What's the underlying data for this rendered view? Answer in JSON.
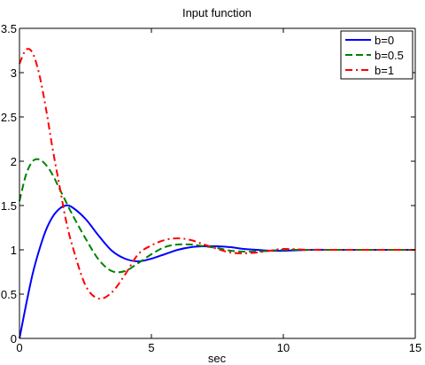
{
  "chart_data": {
    "type": "line",
    "title": "Input function",
    "xlabel": "sec",
    "ylabel": "",
    "xlim": [
      0,
      15
    ],
    "ylim": [
      0,
      3.5
    ],
    "xticks": [
      "0",
      "5",
      "10",
      "15"
    ],
    "yticks": [
      "0",
      "0.5",
      "1",
      "1.5",
      "2",
      "2.5",
      "3",
      "3.5"
    ],
    "grid": false,
    "legend_position": "top-right",
    "series": [
      {
        "name": "b=0",
        "color": "#0000ff",
        "style": "solid",
        "x": [
          0,
          0.25,
          0.5,
          0.75,
          1.0,
          1.25,
          1.5,
          1.75,
          2.0,
          2.5,
          3.0,
          3.5,
          4.0,
          4.5,
          5.0,
          5.5,
          6.0,
          6.5,
          7.0,
          7.5,
          8.0,
          8.5,
          9.0,
          9.5,
          10.0,
          11.0,
          12.0,
          13.0,
          14.0,
          15.0
        ],
        "values": [
          0,
          0.38,
          0.73,
          1.0,
          1.22,
          1.37,
          1.46,
          1.5,
          1.48,
          1.35,
          1.16,
          0.99,
          0.9,
          0.87,
          0.9,
          0.95,
          1.0,
          1.03,
          1.04,
          1.04,
          1.03,
          1.01,
          1.0,
          0.99,
          0.99,
          1.0,
          1.0,
          1.0,
          1.0,
          1.0
        ]
      },
      {
        "name": "b=0.5",
        "color": "#008000",
        "style": "dashed",
        "x": [
          0,
          0.25,
          0.5,
          0.75,
          1.0,
          1.25,
          1.5,
          1.75,
          2.0,
          2.5,
          3.0,
          3.5,
          4.0,
          4.5,
          5.0,
          5.5,
          6.0,
          6.5,
          7.0,
          7.5,
          8.0,
          8.5,
          9.0,
          9.5,
          10.0,
          11.0,
          12.0,
          13.0,
          14.0,
          15.0
        ],
        "values": [
          1.55,
          1.85,
          2.0,
          2.02,
          1.96,
          1.85,
          1.7,
          1.55,
          1.4,
          1.13,
          0.89,
          0.76,
          0.76,
          0.85,
          0.95,
          1.03,
          1.06,
          1.06,
          1.04,
          1.02,
          0.99,
          0.98,
          0.98,
          0.99,
          1.0,
          1.0,
          1.0,
          1.0,
          1.0,
          1.0
        ]
      },
      {
        "name": "b=1",
        "color": "#ff0000",
        "style": "dashdot",
        "x": [
          0,
          0.25,
          0.5,
          0.75,
          1.0,
          1.25,
          1.5,
          1.75,
          2.0,
          2.5,
          3.0,
          3.5,
          4.0,
          4.5,
          5.0,
          5.5,
          6.0,
          6.5,
          7.0,
          7.5,
          8.0,
          8.5,
          9.0,
          9.5,
          10.0,
          11.0,
          12.0,
          13.0,
          14.0,
          15.0
        ],
        "values": [
          3.1,
          3.26,
          3.22,
          2.98,
          2.6,
          2.15,
          1.75,
          1.35,
          1.05,
          0.6,
          0.45,
          0.52,
          0.72,
          0.95,
          1.05,
          1.11,
          1.13,
          1.11,
          1.06,
          1.01,
          0.97,
          0.96,
          0.97,
          0.99,
          1.01,
          1.0,
          1.0,
          1.0,
          1.0,
          1.0
        ]
      }
    ]
  }
}
